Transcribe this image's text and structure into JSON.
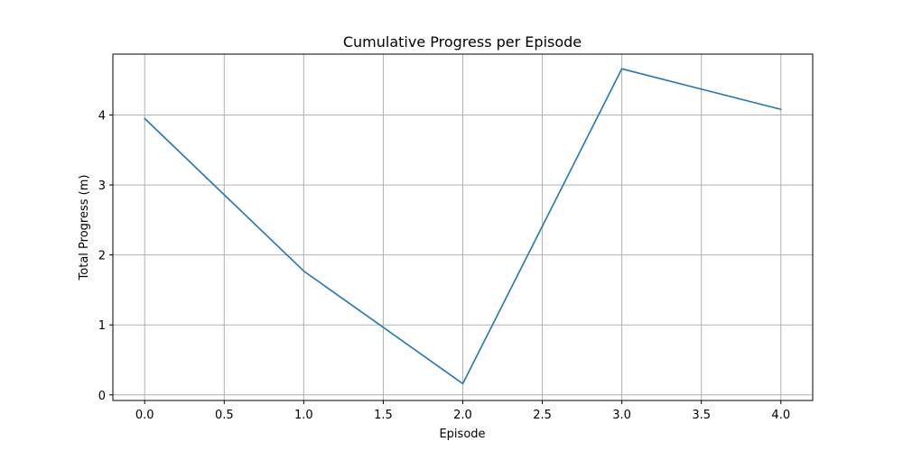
{
  "chart_data": {
    "type": "line",
    "title": "Cumulative Progress per Episode",
    "xlabel": "Episode",
    "ylabel": "Total Progress (m)",
    "xlim": [
      -0.2,
      4.2
    ],
    "ylim": [
      -0.08,
      4.87
    ],
    "xticks": [
      0.0,
      0.5,
      1.0,
      1.5,
      2.0,
      2.5,
      3.0,
      3.5,
      4.0
    ],
    "xtick_labels": [
      "0.0",
      "0.5",
      "1.0",
      "1.5",
      "2.0",
      "2.5",
      "3.0",
      "3.5",
      "4.0"
    ],
    "yticks": [
      0,
      1,
      2,
      3,
      4
    ],
    "ytick_labels": [
      "0",
      "1",
      "2",
      "3",
      "4"
    ],
    "grid": true,
    "series": [
      {
        "x": [
          0,
          1,
          2,
          3,
          4
        ],
        "values": [
          3.95,
          1.77,
          0.16,
          4.66,
          4.08
        ],
        "color": "#1f77b4"
      }
    ]
  }
}
